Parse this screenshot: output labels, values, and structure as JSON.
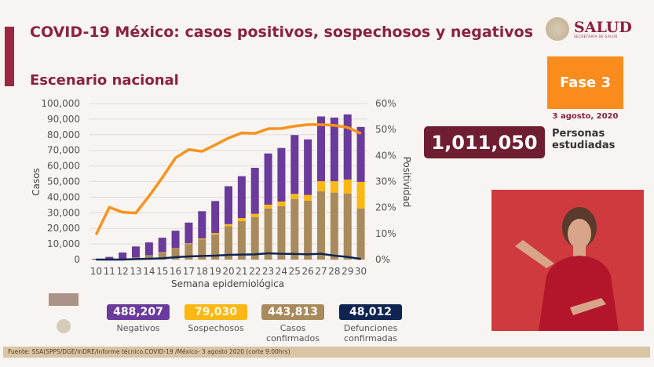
{
  "header": {
    "title": "COVID-19 México: casos positivos, sospechosos y negativos",
    "subtitle": "Escenario nacional"
  },
  "logo": {
    "name": "SALUD",
    "subtitle": "SECRETARÍA DE SALUD"
  },
  "phase": {
    "label": "Fase 3",
    "date": "3 agosto, 2020",
    "color": "#f98c1c"
  },
  "studied": {
    "value": "1,011,050",
    "label_line1": "Personas",
    "label_line2": "estudiadas"
  },
  "stats": [
    {
      "value": "488,207",
      "label1": "Negativos",
      "label2": "",
      "color": "#6a3a9c"
    },
    {
      "value": "79,030",
      "label1": "Sospechosos",
      "label2": "",
      "color": "#fbb812"
    },
    {
      "value": "443,813",
      "label1": "Casos",
      "label2": "confirmados",
      "color": "#a88a5c"
    },
    {
      "value": "48,012",
      "label1": "Defunciones",
      "label2": "confirmadas",
      "color": "#0f2451"
    }
  ],
  "footer": "Fuente: SSA(SPPS/DGE/InDRE/Informe técnico.COVID-19 /México- 3 agosto 2020 (corte 9:00hrs)",
  "chart_data": {
    "type": "bar",
    "stacked": true,
    "xlabel": "Semana epidemiológica",
    "ylabel": "Casos",
    "y2label": "Positividad",
    "ylim": [
      0,
      100000
    ],
    "y2lim": [
      0,
      60
    ],
    "yticks": [
      "0",
      "10,000",
      "20,000",
      "30,000",
      "40,000",
      "50,000",
      "60,000",
      "70,000",
      "80,000",
      "90,000",
      "100,000"
    ],
    "y2ticks": [
      "0%",
      "10%",
      "20%",
      "30%",
      "40%",
      "50%",
      "60%"
    ],
    "grid": true,
    "categories": [
      "10",
      "11",
      "12",
      "13",
      "14",
      "15",
      "16",
      "17",
      "18",
      "19",
      "20",
      "21",
      "22",
      "23",
      "24",
      "25",
      "26",
      "27",
      "28",
      "29",
      "30"
    ],
    "series": [
      {
        "key": "confirmados",
        "color": "#a88a5c",
        "values": [
          0,
          200,
          500,
          1200,
          2500,
          4400,
          7000,
          10000,
          13000,
          16000,
          21400,
          24700,
          27300,
          32700,
          34300,
          38900,
          37700,
          43800,
          42900,
          42400,
          32800
        ]
      },
      {
        "key": "sospechosos",
        "color": "#fbb812",
        "values": [
          0,
          0,
          0,
          100,
          200,
          300,
          300,
          400,
          500,
          1000,
          1300,
          1900,
          2000,
          2500,
          2900,
          3200,
          3700,
          6400,
          7300,
          8900,
          17000
        ]
      },
      {
        "key": "negativos",
        "color": "#6a3a9c",
        "values": [
          500,
          1500,
          4000,
          7100,
          8300,
          9300,
          11200,
          13300,
          17500,
          20500,
          24300,
          26800,
          29500,
          32800,
          34300,
          37700,
          35600,
          41500,
          40800,
          41700,
          35200
        ]
      },
      {
        "key": "defunciones",
        "type": "line",
        "axis": "left",
        "color": "#0f2451",
        "values": [
          0,
          0,
          0,
          300,
          500,
          800,
          1500,
          2000,
          2300,
          2500,
          3000,
          3200,
          3300,
          4000,
          3700,
          3600,
          3400,
          3700,
          2500,
          1700,
          400
        ]
      },
      {
        "key": "positividad",
        "type": "line",
        "axis": "right",
        "unit": "%",
        "color": "#f7931e",
        "values": [
          9.6,
          20.1,
          18.2,
          17.9,
          24.4,
          31.5,
          39.1,
          42.3,
          41.6,
          44.1,
          46.7,
          48.7,
          48.5,
          50.3,
          50.4,
          51.3,
          51.9,
          51.9,
          51.6,
          50.8,
          48.5
        ]
      }
    ]
  }
}
